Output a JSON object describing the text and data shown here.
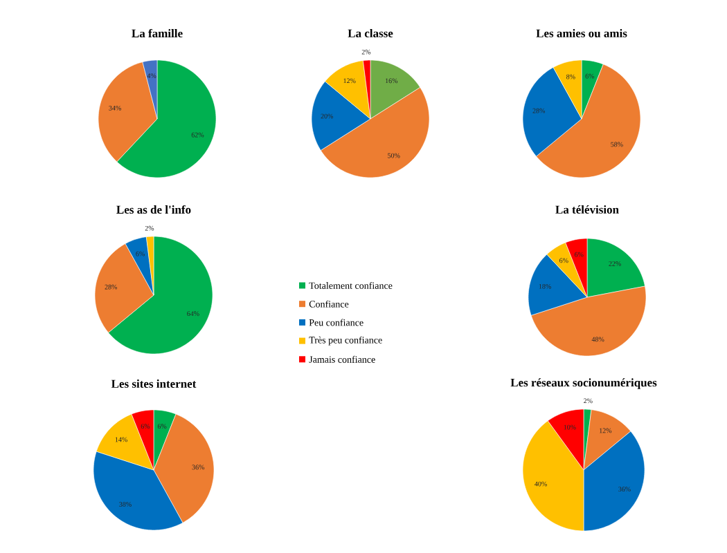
{
  "chart_data": [
    {
      "type": "pie",
      "title": "La famille",
      "categories": [
        null,
        null,
        null,
        null,
        null
      ],
      "values": [
        62,
        34,
        4,
        null,
        null
      ],
      "colors": [
        "#00b050",
        "#ed7d31",
        "#4472c4",
        "#ffc000",
        "#ff0000"
      ],
      "value_labels": [
        "62%",
        "34%",
        "4%",
        null,
        null
      ]
    },
    {
      "type": "pie",
      "title": "La classe",
      "categories": [
        null,
        null,
        null,
        null,
        null
      ],
      "values": [
        16,
        50,
        20,
        12,
        2
      ],
      "colors": [
        "#70ad47",
        "#ed7d31",
        "#0070c0",
        "#ffc000",
        "#ff0000"
      ],
      "value_labels": [
        "16%",
        "50%",
        "20%",
        "12%",
        "2%"
      ]
    },
    {
      "type": "pie",
      "title": "Les amies ou amis",
      "categories": [
        null,
        null,
        null,
        null,
        null
      ],
      "values": [
        6,
        58,
        28,
        8,
        null
      ],
      "colors": [
        "#00b050",
        "#ed7d31",
        "#0070c0",
        "#ffc000",
        "#ff0000"
      ],
      "value_labels": [
        "6%",
        "58%",
        "28%",
        "8%",
        null
      ]
    },
    {
      "type": "pie",
      "title": "Les as de l'info",
      "categories": [
        null,
        null,
        null,
        null,
        null
      ],
      "values": [
        64,
        28,
        6,
        2,
        null
      ],
      "colors": [
        "#00b050",
        "#ed7d31",
        "#0070c0",
        "#ffc000",
        "#ff0000"
      ],
      "value_labels": [
        "64%",
        "28%",
        "6%",
        "2%",
        null
      ]
    },
    {
      "type": "pie",
      "title": "La télévision",
      "categories": [
        "Totalement confiance",
        "Confiance",
        "Peu confiance",
        "Très peu confiance",
        "Jamais confiance"
      ],
      "values": [
        22,
        48,
        18,
        6,
        6
      ],
      "colors": [
        "#00b050",
        "#ed7d31",
        "#0070c0",
        "#ffc000",
        "#ff0000"
      ],
      "value_labels": [
        "22%",
        "48%",
        "18%",
        "6%",
        "6%"
      ],
      "legend": "left"
    },
    {
      "type": "pie",
      "title": "Les sites internet",
      "categories": [
        null,
        null,
        null,
        null,
        null
      ],
      "values": [
        6,
        36,
        38,
        14,
        6
      ],
      "colors": [
        "#00b050",
        "#ed7d31",
        "#0070c0",
        "#ffc000",
        "#ff0000"
      ],
      "value_labels": [
        "6%",
        "36%",
        "38%",
        "14%",
        "6%"
      ]
    },
    {
      "type": "pie",
      "title": "Les réseaux socionumériques",
      "categories": [
        null,
        null,
        null,
        null,
        null
      ],
      "values": [
        2,
        12,
        36,
        40,
        10
      ],
      "colors": [
        "#00b050",
        "#ed7d31",
        "#0070c0",
        "#ffc000",
        "#ff0000"
      ],
      "value_labels": [
        "2%",
        "12%",
        "36%",
        "40%",
        "10%"
      ]
    }
  ]
}
